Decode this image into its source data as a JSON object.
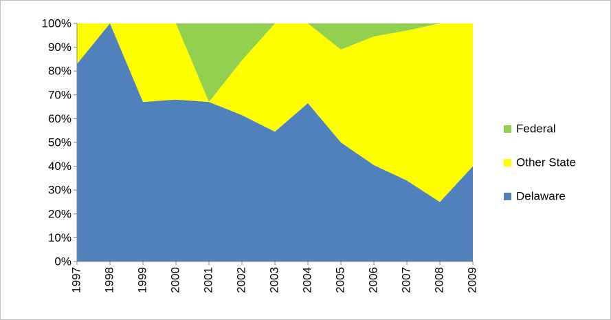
{
  "chart_data": {
    "type": "stacked-area",
    "categories": [
      "1997",
      "1998",
      "1999",
      "2000",
      "2001",
      "2002",
      "2003",
      "2004",
      "2005",
      "2006",
      "2007",
      "2008",
      "2009"
    ],
    "series": [
      {
        "name": "Delaware",
        "color": "#4f81bd",
        "values": [
          83,
          100,
          67,
          68,
          67,
          61.5,
          54.5,
          66.5,
          50,
          40.5,
          34,
          25,
          40
        ]
      },
      {
        "name": "Other State",
        "color": "#ffff00",
        "values": [
          17,
          0,
          33,
          32,
          0,
          23,
          45.5,
          33.5,
          39,
          54,
          63,
          75,
          60
        ]
      },
      {
        "name": "Federal",
        "color": "#92d050",
        "values": [
          0,
          0,
          0,
          0,
          33,
          15.5,
          0,
          0,
          11,
          5.5,
          3,
          0,
          0
        ]
      }
    ],
    "ylim": [
      0,
      100
    ],
    "yticks": [
      {
        "value": 0,
        "label": "0%"
      },
      {
        "value": 10,
        "label": "10%"
      },
      {
        "value": 20,
        "label": "20%"
      },
      {
        "value": 30,
        "label": "30%"
      },
      {
        "value": 40,
        "label": "40%"
      },
      {
        "value": 50,
        "label": "50%"
      },
      {
        "value": 60,
        "label": "60%"
      },
      {
        "value": 70,
        "label": "70%"
      },
      {
        "value": 80,
        "label": "80%"
      },
      {
        "value": 90,
        "label": "90%"
      },
      {
        "value": 100,
        "label": "100%"
      }
    ],
    "legend": "right"
  }
}
